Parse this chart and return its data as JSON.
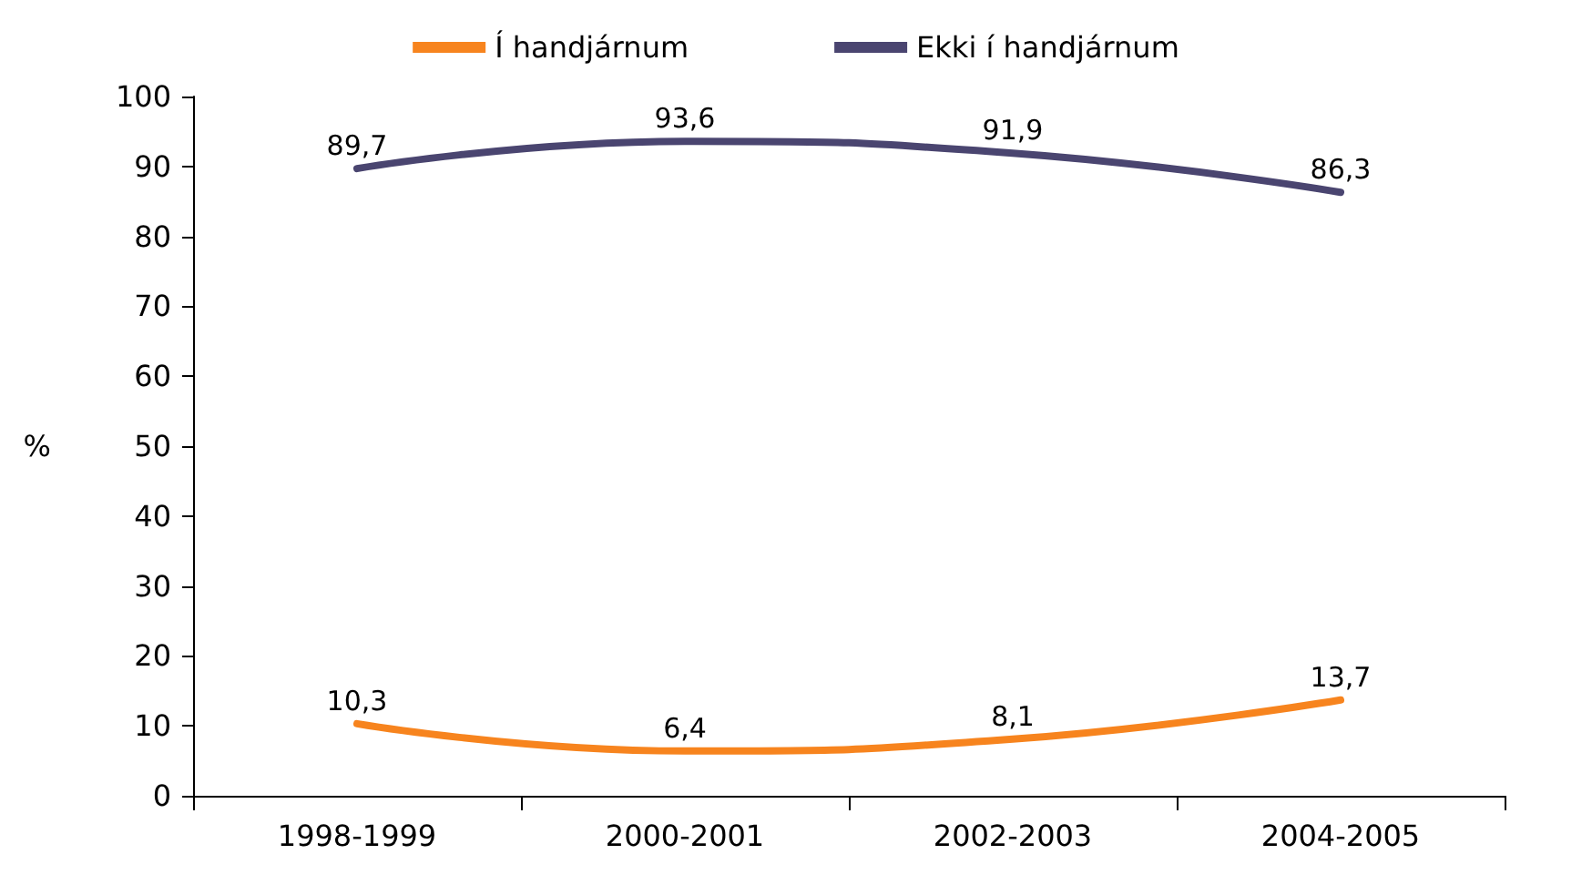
{
  "chart_data": {
    "type": "line",
    "ylabel": "%",
    "categories": [
      "1998-1999",
      "2000-2001",
      "2002-2003",
      "2004-2005"
    ],
    "series": [
      {
        "name": "Í handjárnum",
        "color": "#f7841e",
        "values": [
          10.3,
          6.4,
          8.1,
          13.7
        ],
        "value_labels": [
          "10,3",
          "6,4",
          "8,1",
          "13,7"
        ]
      },
      {
        "name": "Ekki í handjárnum",
        "color": "#4a4570",
        "values": [
          89.7,
          93.6,
          91.9,
          86.3
        ],
        "value_labels": [
          "89,7",
          "93,6",
          "91,9",
          "86,3"
        ]
      }
    ],
    "ylim": [
      0,
      100
    ],
    "yticks": [
      0,
      10,
      20,
      30,
      40,
      50,
      60,
      70,
      80,
      90,
      100
    ],
    "grid": false,
    "legend": "top",
    "marker": "none",
    "line_style": "solid"
  }
}
